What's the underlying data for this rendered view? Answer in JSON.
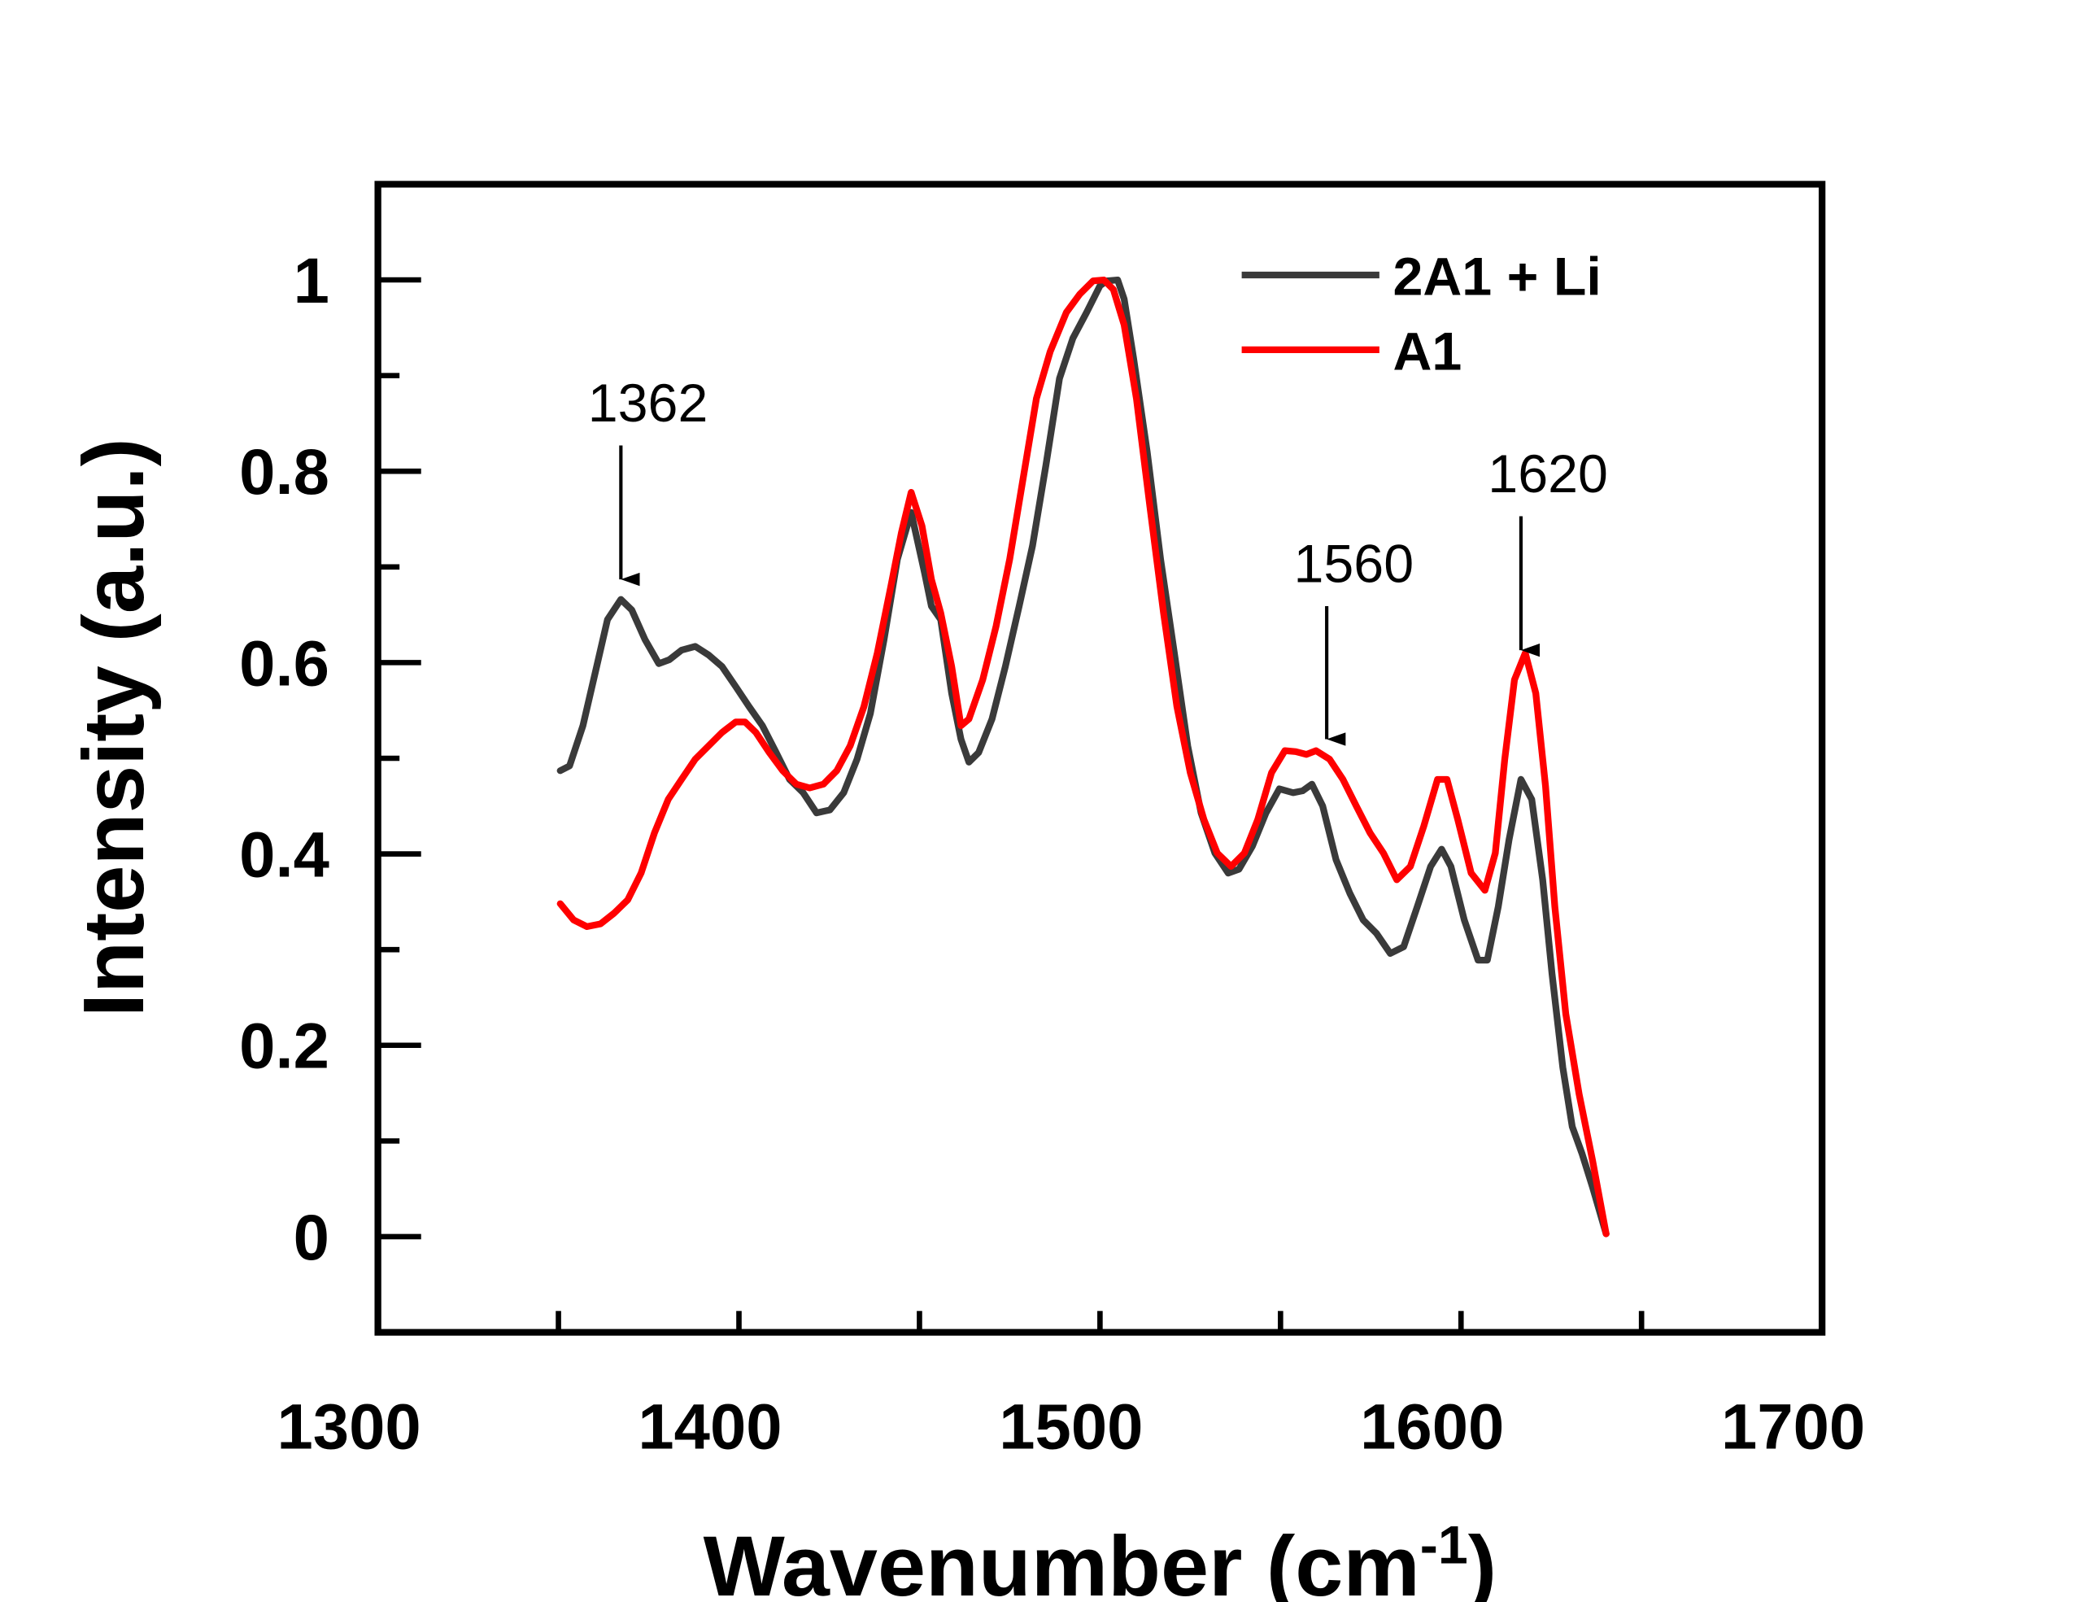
{
  "chart_data": {
    "type": "line",
    "title": "",
    "xlabel": "Wavenumber (cm",
    "xlabel_sup": "-1",
    "xlabel_end": ")",
    "ylabel": "Intensity (a.u.)",
    "xlim": [
      1308,
      1708
    ],
    "ylim": [
      -0.1,
      1.1
    ],
    "grid": false,
    "legend_position": "top-right",
    "x_tick_labels": [
      "1300",
      "1400",
      "1500",
      "1600",
      "1700"
    ],
    "x_tick_values": [
      1300,
      1400,
      1500,
      1600,
      1700
    ],
    "x_tick_marks": [
      1358,
      1408,
      1458,
      1508,
      1558,
      1608,
      1658
    ],
    "y_tick_labels": [
      "0",
      "0.2",
      "0.4",
      "0.6",
      "0.8",
      "1"
    ],
    "y_tick_values": [
      0,
      0.2,
      0.4,
      0.6,
      0.8,
      1
    ],
    "y_minor_ticks": [
      0.1,
      0.3,
      0.5,
      0.7,
      0.9
    ],
    "series": [
      {
        "name": "2A1 + Li",
        "color": "#3a3a3a",
        "x": [
          1358.5,
          1361.1,
          1364.8,
          1368.6,
          1371.6,
          1375.3,
          1378.3,
          1382.0,
          1385.8,
          1388.7,
          1392.1,
          1395.9,
          1399.6,
          1403.3,
          1407.1,
          1410.8,
          1414.5,
          1418.3,
          1422.0,
          1425.8,
          1429.5,
          1433.2,
          1437.0,
          1440.7,
          1444.4,
          1448.2,
          1451.9,
          1455.7,
          1459.4,
          1461.3,
          1463.9,
          1466.9,
          1469.5,
          1471.7,
          1474.4,
          1478.1,
          1481.8,
          1485.6,
          1489.3,
          1493.0,
          1496.8,
          1500.5,
          1504.3,
          1508.0,
          1509.9,
          1512.9,
          1514.7,
          1517.3,
          1521.1,
          1524.8,
          1528.6,
          1532.3,
          1536.0,
          1539.8,
          1543.5,
          1546.5,
          1550.2,
          1554.0,
          1557.7,
          1561.5,
          1564.1,
          1566.7,
          1569.7,
          1573.4,
          1577.2,
          1580.9,
          1584.6,
          1588.4,
          1592.1,
          1595.9,
          1599.6,
          1602.6,
          1605.2,
          1608.9,
          1612.7,
          1615.3,
          1618.3,
          1621.3,
          1624.6,
          1627.6,
          1630.6,
          1633.2,
          1636.2,
          1638.8,
          1641.5,
          1644.4,
          1648.2
        ],
        "y": [
          0.487,
          0.492,
          0.534,
          0.596,
          0.645,
          0.666,
          0.655,
          0.624,
          0.599,
          0.603,
          0.613,
          0.617,
          0.608,
          0.596,
          0.575,
          0.554,
          0.534,
          0.506,
          0.478,
          0.464,
          0.443,
          0.446,
          0.464,
          0.499,
          0.547,
          0.624,
          0.708,
          0.757,
          0.694,
          0.659,
          0.645,
          0.568,
          0.52,
          0.496,
          0.506,
          0.541,
          0.596,
          0.659,
          0.722,
          0.806,
          0.897,
          0.939,
          0.966,
          0.994,
          0.999,
          1.0,
          0.98,
          0.918,
          0.82,
          0.708,
          0.61,
          0.513,
          0.443,
          0.401,
          0.38,
          0.384,
          0.408,
          0.443,
          0.468,
          0.464,
          0.466,
          0.473,
          0.45,
          0.394,
          0.359,
          0.331,
          0.317,
          0.296,
          0.303,
          0.345,
          0.387,
          0.405,
          0.387,
          0.331,
          0.289,
          0.289,
          0.345,
          0.415,
          0.478,
          0.457,
          0.373,
          0.275,
          0.177,
          0.115,
          0.087,
          0.052,
          0.003
        ]
      },
      {
        "name": "A1",
        "color": "#ff0000",
        "x": [
          1358.5,
          1362.2,
          1365.9,
          1369.7,
          1373.4,
          1377.2,
          1380.9,
          1384.6,
          1388.4,
          1392.1,
          1395.9,
          1399.6,
          1403.3,
          1407.1,
          1409.7,
          1412.7,
          1416.4,
          1420.1,
          1423.9,
          1427.6,
          1431.4,
          1435.1,
          1438.8,
          1442.6,
          1446.3,
          1450.1,
          1453.0,
          1455.7,
          1458.7,
          1461.3,
          1463.9,
          1466.9,
          1469.5,
          1471.7,
          1475.5,
          1479.2,
          1483.0,
          1486.7,
          1490.4,
          1494.2,
          1498.7,
          1502.4,
          1506.1,
          1509.1,
          1511.7,
          1514.7,
          1518.1,
          1521.8,
          1525.6,
          1529.3,
          1533.0,
          1536.8,
          1540.5,
          1544.3,
          1548.0,
          1551.7,
          1555.5,
          1559.2,
          1562.2,
          1565.2,
          1567.8,
          1571.6,
          1575.3,
          1579.0,
          1582.8,
          1586.5,
          1590.2,
          1594.0,
          1597.7,
          1601.5,
          1604.1,
          1607.1,
          1610.8,
          1614.6,
          1617.5,
          1620.1,
          1622.8,
          1625.8,
          1628.7,
          1631.4,
          1634.0,
          1637.0,
          1640.7,
          1644.4,
          1648.2
        ],
        "y": [
          0.348,
          0.331,
          0.324,
          0.327,
          0.338,
          0.352,
          0.38,
          0.422,
          0.457,
          0.478,
          0.499,
          0.513,
          0.527,
          0.538,
          0.538,
          0.527,
          0.506,
          0.487,
          0.473,
          0.469,
          0.473,
          0.487,
          0.513,
          0.554,
          0.61,
          0.68,
          0.736,
          0.778,
          0.743,
          0.687,
          0.652,
          0.596,
          0.534,
          0.541,
          0.582,
          0.638,
          0.708,
          0.792,
          0.876,
          0.925,
          0.966,
          0.985,
          0.999,
          1.0,
          0.99,
          0.953,
          0.876,
          0.764,
          0.652,
          0.554,
          0.485,
          0.436,
          0.401,
          0.387,
          0.401,
          0.436,
          0.485,
          0.508,
          0.507,
          0.504,
          0.508,
          0.499,
          0.478,
          0.45,
          0.422,
          0.401,
          0.373,
          0.387,
          0.429,
          0.478,
          0.478,
          0.436,
          0.38,
          0.362,
          0.401,
          0.499,
          0.582,
          0.61,
          0.568,
          0.471,
          0.345,
          0.233,
          0.149,
          0.08,
          0.003
        ]
      }
    ],
    "annotations": [
      {
        "label": "1362",
        "x": 1375.3,
        "y_from": 0.827,
        "y_to": 0.687
      },
      {
        "label": "1560",
        "x": 1570.8,
        "y_from": 0.659,
        "y_to": 0.52
      },
      {
        "label": "1620",
        "x": 1624.6,
        "y_from": 0.753,
        "y_to": 0.613
      }
    ]
  }
}
